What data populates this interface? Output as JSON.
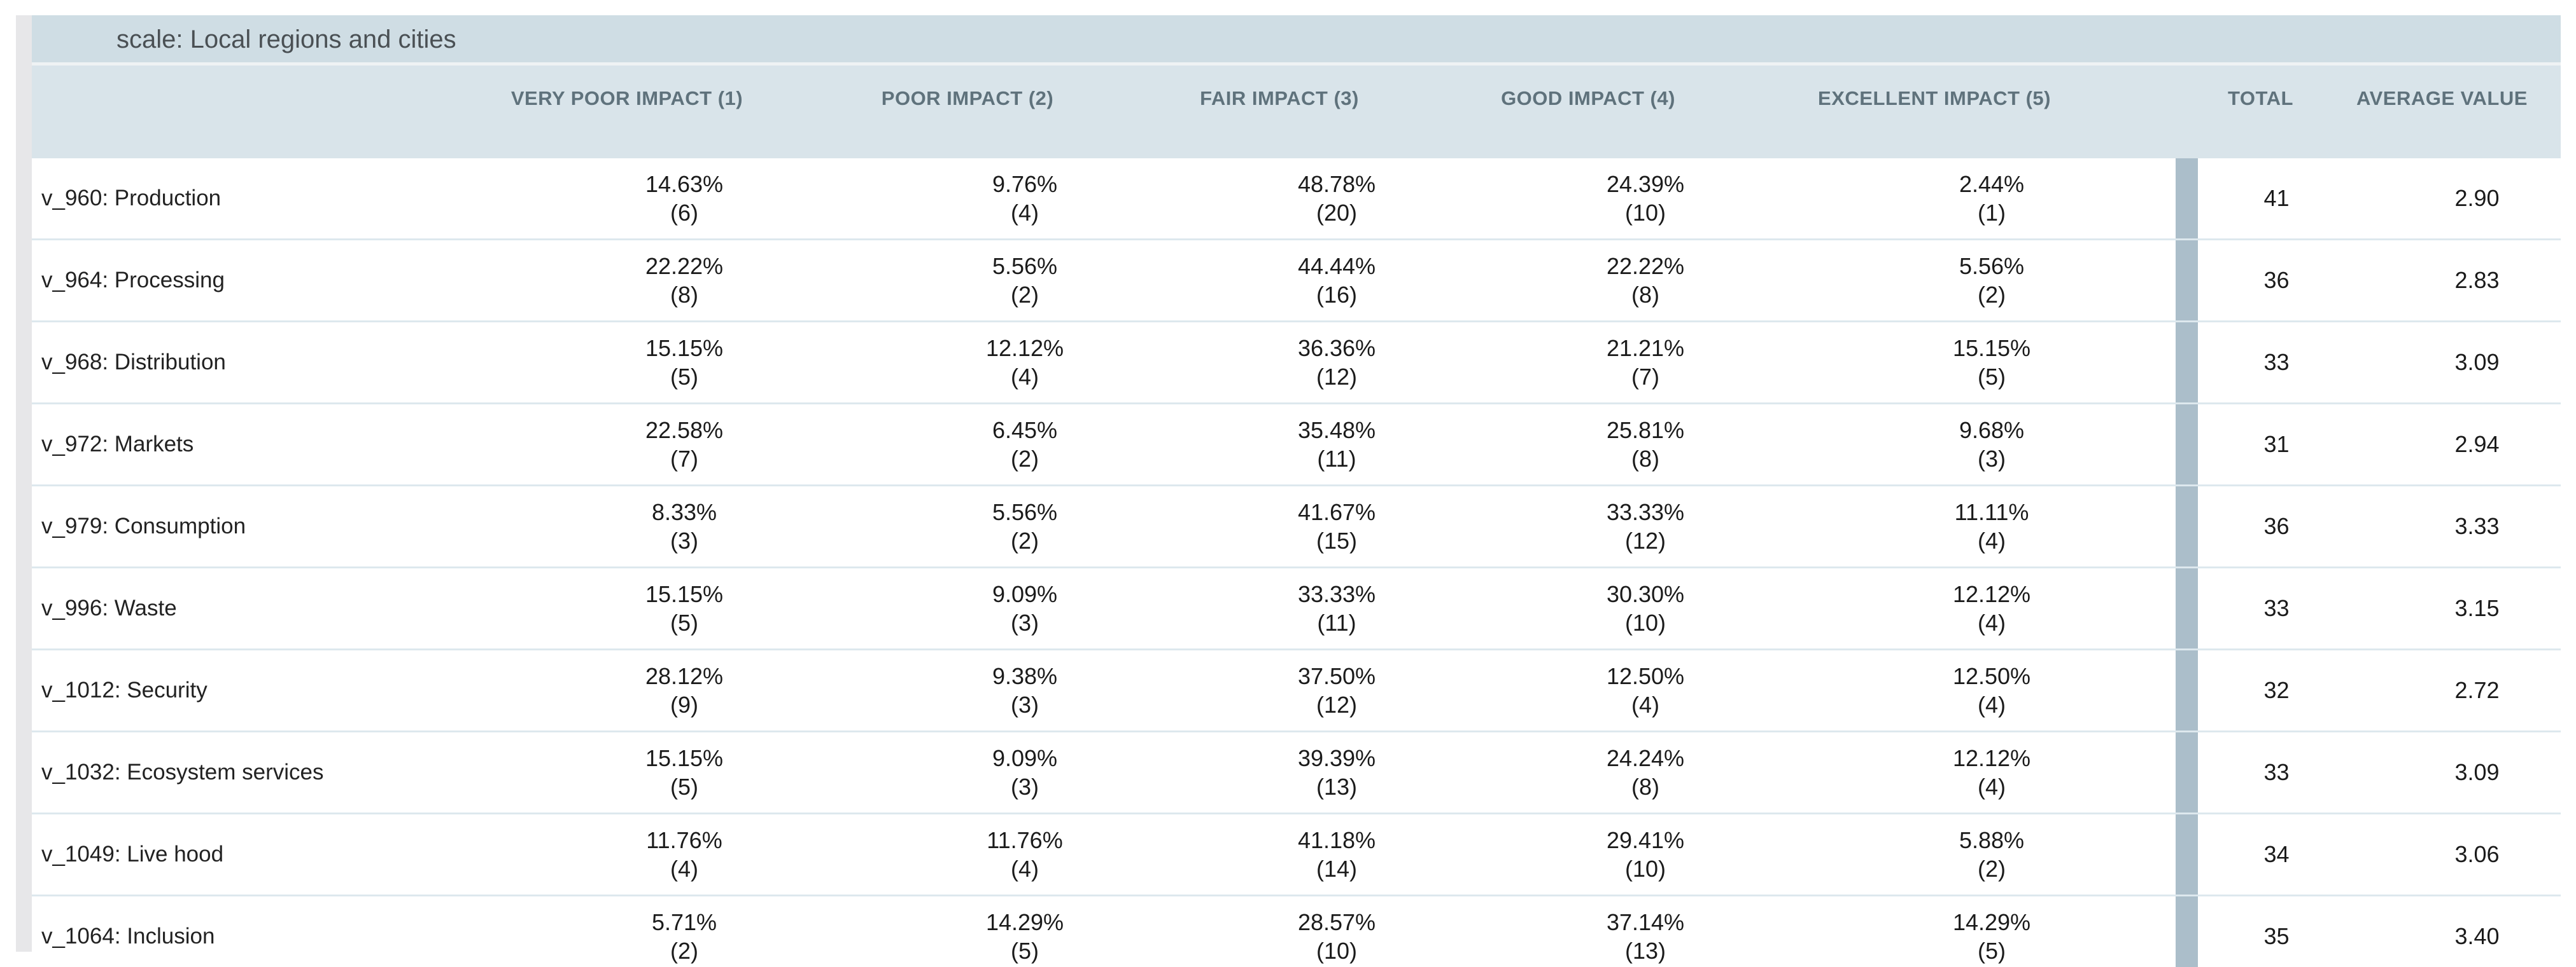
{
  "title": "scale: Local regions and cities",
  "columns": {
    "very_poor": "VERY POOR IMPACT (1)",
    "poor": "POOR IMPACT (2)",
    "fair": "FAIR IMPACT (3)",
    "good": "GOOD IMPACT (4)",
    "excellent": "EXCELLENT IMPACT (5)",
    "total": "TOTAL",
    "average": "AVERAGE VALUE"
  },
  "rows": [
    {
      "label": "v_960: Production",
      "cells": [
        {
          "pct": "14.63%",
          "count": "(6)"
        },
        {
          "pct": "9.76%",
          "count": "(4)"
        },
        {
          "pct": "48.78%",
          "count": "(20)"
        },
        {
          "pct": "24.39%",
          "count": "(10)"
        },
        {
          "pct": "2.44%",
          "count": "(1)"
        }
      ],
      "total": "41",
      "avg": "2.90"
    },
    {
      "label": "v_964: Processing",
      "cells": [
        {
          "pct": "22.22%",
          "count": "(8)"
        },
        {
          "pct": "5.56%",
          "count": "(2)"
        },
        {
          "pct": "44.44%",
          "count": "(16)"
        },
        {
          "pct": "22.22%",
          "count": "(8)"
        },
        {
          "pct": "5.56%",
          "count": "(2)"
        }
      ],
      "total": "36",
      "avg": "2.83"
    },
    {
      "label": "v_968: Distribution",
      "cells": [
        {
          "pct": "15.15%",
          "count": "(5)"
        },
        {
          "pct": "12.12%",
          "count": "(4)"
        },
        {
          "pct": "36.36%",
          "count": "(12)"
        },
        {
          "pct": "21.21%",
          "count": "(7)"
        },
        {
          "pct": "15.15%",
          "count": "(5)"
        }
      ],
      "total": "33",
      "avg": "3.09"
    },
    {
      "label": "v_972: Markets",
      "cells": [
        {
          "pct": "22.58%",
          "count": "(7)"
        },
        {
          "pct": "6.45%",
          "count": "(2)"
        },
        {
          "pct": "35.48%",
          "count": "(11)"
        },
        {
          "pct": "25.81%",
          "count": "(8)"
        },
        {
          "pct": "9.68%",
          "count": "(3)"
        }
      ],
      "total": "31",
      "avg": "2.94"
    },
    {
      "label": "v_979: Consumption",
      "cells": [
        {
          "pct": "8.33%",
          "count": "(3)"
        },
        {
          "pct": "5.56%",
          "count": "(2)"
        },
        {
          "pct": "41.67%",
          "count": "(15)"
        },
        {
          "pct": "33.33%",
          "count": "(12)"
        },
        {
          "pct": "11.11%",
          "count": "(4)"
        }
      ],
      "total": "36",
      "avg": "3.33"
    },
    {
      "label": "v_996: Waste",
      "cells": [
        {
          "pct": "15.15%",
          "count": "(5)"
        },
        {
          "pct": "9.09%",
          "count": "(3)"
        },
        {
          "pct": "33.33%",
          "count": "(11)"
        },
        {
          "pct": "30.30%",
          "count": "(10)"
        },
        {
          "pct": "12.12%",
          "count": "(4)"
        }
      ],
      "total": "33",
      "avg": "3.15"
    },
    {
      "label": "v_1012: Security",
      "cells": [
        {
          "pct": "28.12%",
          "count": "(9)"
        },
        {
          "pct": "9.38%",
          "count": "(3)"
        },
        {
          "pct": "37.50%",
          "count": "(12)"
        },
        {
          "pct": "12.50%",
          "count": "(4)"
        },
        {
          "pct": "12.50%",
          "count": "(4)"
        }
      ],
      "total": "32",
      "avg": "2.72"
    },
    {
      "label": "v_1032: Ecosystem services",
      "cells": [
        {
          "pct": "15.15%",
          "count": "(5)"
        },
        {
          "pct": "9.09%",
          "count": "(3)"
        },
        {
          "pct": "39.39%",
          "count": "(13)"
        },
        {
          "pct": "24.24%",
          "count": "(8)"
        },
        {
          "pct": "12.12%",
          "count": "(4)"
        }
      ],
      "total": "33",
      "avg": "3.09"
    },
    {
      "label": "v_1049: Live hood",
      "cells": [
        {
          "pct": "11.76%",
          "count": "(4)"
        },
        {
          "pct": "11.76%",
          "count": "(4)"
        },
        {
          "pct": "41.18%",
          "count": "(14)"
        },
        {
          "pct": "29.41%",
          "count": "(10)"
        },
        {
          "pct": "5.88%",
          "count": "(2)"
        }
      ],
      "total": "34",
      "avg": "3.06"
    },
    {
      "label": "v_1064: Inclusion",
      "cells": [
        {
          "pct": "5.71%",
          "count": "(2)"
        },
        {
          "pct": "14.29%",
          "count": "(5)"
        },
        {
          "pct": "28.57%",
          "count": "(10)"
        },
        {
          "pct": "37.14%",
          "count": "(13)"
        },
        {
          "pct": "14.29%",
          "count": "(5)"
        }
      ],
      "total": "35",
      "avg": "3.40"
    }
  ],
  "colors": {
    "title_band": "#cfdde4",
    "header_band": "#d9e4ea",
    "row_separator": "#dde8ee",
    "scrollbar_thumb": "#abbeca",
    "left_track": "#e7e7e9",
    "header_text": "#5f727c",
    "title_text": "#4a5054"
  }
}
